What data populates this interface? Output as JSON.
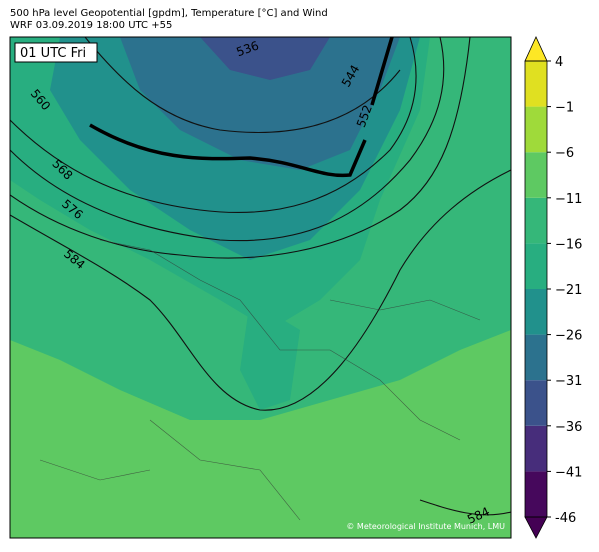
{
  "header": {
    "title": "500 hPa level Geopotential [gpdm], Temperature [°C] and Wind",
    "subtitle": "WRF 03.09.2019 18:00 UTC +55"
  },
  "map": {
    "time_label": "01 UTC Fri",
    "contour_labels": [
      "536",
      "544",
      "552",
      "560",
      "568",
      "576",
      "584",
      "584"
    ],
    "credit": "© Meteorological Institute Munich, LMU"
  },
  "colorbar": {
    "lim": [
      -46,
      4
    ],
    "ticks": [
      -46,
      {
        "value": -41,
        "label": "−41"
      },
      {
        "value": -36,
        "label": "−36"
      },
      {
        "value": -31,
        "label": "−31"
      },
      {
        "value": -26,
        "label": "−26"
      },
      {
        "value": -21,
        "label": "−21"
      },
      {
        "value": -16,
        "label": "−16"
      },
      {
        "value": -11,
        "label": "−11"
      },
      {
        "value": -6,
        "label": "−6"
      },
      {
        "value": -1,
        "label": "−1"
      },
      4
    ],
    "colors": [
      "#46085c",
      "#472d7b",
      "#3b528b",
      "#2c728e",
      "#21918c",
      "#28ae80",
      "#35b779",
      "#5ec962",
      "#9fda3a",
      "#e0e021"
    ],
    "extend_colors": [
      "#440154",
      "#fde725"
    ]
  }
}
